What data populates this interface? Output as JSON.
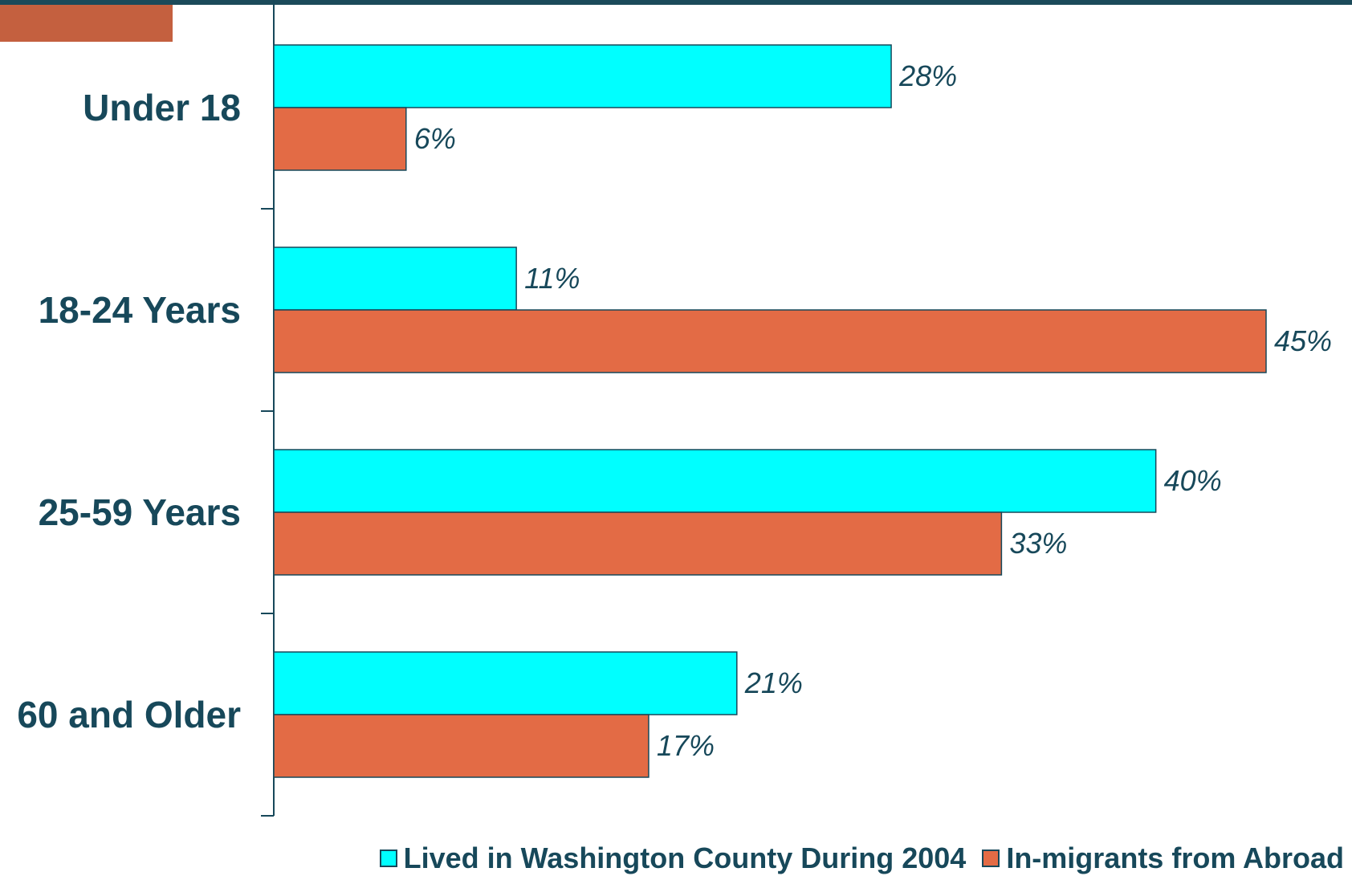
{
  "colors": {
    "frame": "#1b4a5a",
    "accent_block": "#c4603f",
    "text": "#17485a"
  },
  "chart_data": {
    "type": "bar",
    "orientation": "horizontal",
    "categories": [
      "Under 18",
      "18-24 Years",
      "25-59 Years",
      "60 and Older"
    ],
    "series": [
      {
        "name": "Lived in Washington County During 2004",
        "color": "#00ffff",
        "values": [
          28,
          11,
          40,
          21
        ]
      },
      {
        "name": "In-migrants from Abroad",
        "color": "#e36b45",
        "values": [
          6,
          45,
          33,
          17
        ]
      }
    ],
    "value_labels": [
      [
        "28%",
        "11%",
        "40%",
        "21%"
      ],
      [
        "6%",
        "45%",
        "33%",
        "17%"
      ]
    ],
    "xlim": [
      0,
      45
    ],
    "title": "",
    "xlabel": "",
    "ylabel": "",
    "grid": false,
    "legend_position": "bottom-right"
  }
}
